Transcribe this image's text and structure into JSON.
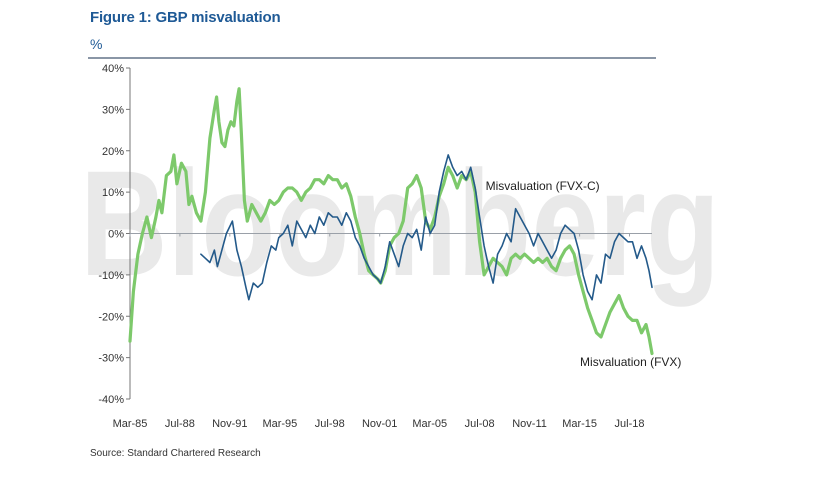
{
  "figure": {
    "title": "Figure 1: GBP misvaluation",
    "unit": "%",
    "source": "Source: Standard Chartered Research",
    "watermark": "Bloomberg"
  },
  "chart_data": {
    "type": "line",
    "title": "Figure 1: GBP misvaluation",
    "ylabel": "%",
    "ylim": [
      -40,
      40
    ],
    "yticks": [
      40,
      30,
      20,
      10,
      0,
      -10,
      -20,
      -30,
      -40
    ],
    "ytick_labels": [
      "40%",
      "30%",
      "20%",
      "10%",
      "0%",
      "-10%",
      "-20%",
      "-30%",
      "-40%"
    ],
    "xlim": [
      1985.17,
      2020.0
    ],
    "xticks": [
      {
        "label": "Mar-85",
        "x": 1985.17
      },
      {
        "label": "Jul-88",
        "x": 1988.5
      },
      {
        "label": "Nov-91",
        "x": 1991.83
      },
      {
        "label": "Mar-95",
        "x": 1995.17
      },
      {
        "label": "Jul-98",
        "x": 1998.5
      },
      {
        "label": "Nov-01",
        "x": 2001.83
      },
      {
        "label": "Mar-05",
        "x": 2005.17
      },
      {
        "label": "Jul-08",
        "x": 2008.5
      },
      {
        "label": "Nov-11",
        "x": 2011.83
      },
      {
        "label": "Mar-15",
        "x": 2015.17
      },
      {
        "label": "Jul-18",
        "x": 2018.5
      }
    ],
    "colors": {
      "fvx": "#7dc96b",
      "fvxc": "#245a8a",
      "axis": "#8a96a6",
      "zero_line": "#9aa0a8",
      "title": "#1f5a96"
    },
    "series": [
      {
        "name": "Misvaluation (FVX)",
        "key": "fvx",
        "points": [
          [
            1985.17,
            -26
          ],
          [
            1985.4,
            -14
          ],
          [
            1985.7,
            -5
          ],
          [
            1986.0,
            0
          ],
          [
            1986.3,
            4
          ],
          [
            1986.6,
            -1
          ],
          [
            1986.9,
            4
          ],
          [
            1987.1,
            8
          ],
          [
            1987.3,
            5
          ],
          [
            1987.6,
            14
          ],
          [
            1987.9,
            15
          ],
          [
            1988.1,
            19
          ],
          [
            1988.3,
            12
          ],
          [
            1988.6,
            17
          ],
          [
            1988.9,
            15
          ],
          [
            1989.1,
            7
          ],
          [
            1989.3,
            9
          ],
          [
            1989.6,
            5
          ],
          [
            1989.9,
            3
          ],
          [
            1990.2,
            10
          ],
          [
            1990.5,
            23
          ],
          [
            1990.8,
            30
          ],
          [
            1990.95,
            33
          ],
          [
            1991.1,
            27
          ],
          [
            1991.3,
            22
          ],
          [
            1991.5,
            21
          ],
          [
            1991.7,
            25
          ],
          [
            1991.9,
            27
          ],
          [
            1992.1,
            26
          ],
          [
            1992.3,
            32
          ],
          [
            1992.45,
            35
          ],
          [
            1992.6,
            24
          ],
          [
            1992.8,
            8
          ],
          [
            1993.0,
            3
          ],
          [
            1993.3,
            7
          ],
          [
            1993.6,
            5
          ],
          [
            1993.9,
            3
          ],
          [
            1994.2,
            5
          ],
          [
            1994.5,
            8
          ],
          [
            1994.8,
            7
          ],
          [
            1995.1,
            8
          ],
          [
            1995.4,
            10
          ],
          [
            1995.7,
            11
          ],
          [
            1996.0,
            11
          ],
          [
            1996.3,
            10
          ],
          [
            1996.6,
            8
          ],
          [
            1996.9,
            10
          ],
          [
            1997.2,
            11
          ],
          [
            1997.5,
            13
          ],
          [
            1997.8,
            13
          ],
          [
            1998.1,
            12
          ],
          [
            1998.4,
            14
          ],
          [
            1998.7,
            13
          ],
          [
            1999.0,
            13
          ],
          [
            1999.3,
            11
          ],
          [
            1999.6,
            12
          ],
          [
            1999.9,
            9
          ],
          [
            2000.2,
            4
          ],
          [
            2000.5,
            0
          ],
          [
            2000.8,
            -5
          ],
          [
            2001.1,
            -9
          ],
          [
            2001.4,
            -10
          ],
          [
            2001.7,
            -11
          ],
          [
            2001.9,
            -12
          ],
          [
            2002.2,
            -9
          ],
          [
            2002.5,
            -3
          ],
          [
            2002.8,
            -1
          ],
          [
            2003.1,
            0
          ],
          [
            2003.4,
            3
          ],
          [
            2003.7,
            11
          ],
          [
            2004.0,
            12
          ],
          [
            2004.3,
            14
          ],
          [
            2004.6,
            11
          ],
          [
            2004.9,
            3
          ],
          [
            2005.2,
            1
          ],
          [
            2005.5,
            4
          ],
          [
            2005.8,
            9
          ],
          [
            2006.1,
            12
          ],
          [
            2006.4,
            16
          ],
          [
            2006.7,
            14
          ],
          [
            2007.0,
            11
          ],
          [
            2007.3,
            14
          ],
          [
            2007.6,
            13
          ],
          [
            2007.9,
            15
          ],
          [
            2008.2,
            10
          ],
          [
            2008.5,
            -2
          ],
          [
            2008.8,
            -10
          ],
          [
            2009.1,
            -8
          ],
          [
            2009.4,
            -6
          ],
          [
            2009.7,
            -7
          ],
          [
            2010.0,
            -8
          ],
          [
            2010.3,
            -10
          ],
          [
            2010.6,
            -6
          ],
          [
            2010.9,
            -5
          ],
          [
            2011.2,
            -6
          ],
          [
            2011.5,
            -5
          ],
          [
            2011.8,
            -6
          ],
          [
            2012.1,
            -7
          ],
          [
            2012.4,
            -6
          ],
          [
            2012.7,
            -7
          ],
          [
            2013.0,
            -6
          ],
          [
            2013.3,
            -8
          ],
          [
            2013.6,
            -9
          ],
          [
            2013.9,
            -6
          ],
          [
            2014.2,
            -4
          ],
          [
            2014.5,
            -3
          ],
          [
            2014.8,
            -5
          ],
          [
            2015.1,
            -10
          ],
          [
            2015.4,
            -14
          ],
          [
            2015.7,
            -18
          ],
          [
            2016.0,
            -21
          ],
          [
            2016.3,
            -24
          ],
          [
            2016.6,
            -25
          ],
          [
            2016.9,
            -22
          ],
          [
            2017.2,
            -19
          ],
          [
            2017.5,
            -17
          ],
          [
            2017.8,
            -15
          ],
          [
            2018.1,
            -18
          ],
          [
            2018.4,
            -20
          ],
          [
            2018.7,
            -21
          ],
          [
            2019.0,
            -21
          ],
          [
            2019.3,
            -24
          ],
          [
            2019.6,
            -22
          ],
          [
            2019.8,
            -25
          ],
          [
            2020.0,
            -29
          ]
        ]
      },
      {
        "name": "Misvaluation (FVX-C)",
        "key": "fvxc",
        "points": [
          [
            1989.9,
            -5
          ],
          [
            1990.2,
            -6
          ],
          [
            1990.5,
            -7
          ],
          [
            1990.8,
            -4
          ],
          [
            1991.0,
            -8
          ],
          [
            1991.3,
            -4
          ],
          [
            1991.6,
            0
          ],
          [
            1992.0,
            3
          ],
          [
            1992.3,
            -4
          ],
          [
            1992.6,
            -8
          ],
          [
            1992.9,
            -13
          ],
          [
            1993.1,
            -16
          ],
          [
            1993.4,
            -12
          ],
          [
            1993.7,
            -13
          ],
          [
            1994.0,
            -12
          ],
          [
            1994.3,
            -7
          ],
          [
            1994.6,
            -3
          ],
          [
            1994.9,
            -4
          ],
          [
            1995.1,
            -1
          ],
          [
            1995.4,
            0
          ],
          [
            1995.7,
            2
          ],
          [
            1996.0,
            -3
          ],
          [
            1996.3,
            3
          ],
          [
            1996.6,
            1
          ],
          [
            1996.9,
            -1
          ],
          [
            1997.2,
            2
          ],
          [
            1997.5,
            0
          ],
          [
            1997.8,
            4
          ],
          [
            1998.1,
            2
          ],
          [
            1998.4,
            5
          ],
          [
            1998.7,
            4
          ],
          [
            1999.0,
            4
          ],
          [
            1999.3,
            2
          ],
          [
            1999.6,
            5
          ],
          [
            1999.9,
            3
          ],
          [
            2000.2,
            -1
          ],
          [
            2000.5,
            -3
          ],
          [
            2000.8,
            -6
          ],
          [
            2001.1,
            -8
          ],
          [
            2001.4,
            -10
          ],
          [
            2001.7,
            -11
          ],
          [
            2001.9,
            -12
          ],
          [
            2002.2,
            -8
          ],
          [
            2002.5,
            -2
          ],
          [
            2002.8,
            -5
          ],
          [
            2003.1,
            -8
          ],
          [
            2003.4,
            -3
          ],
          [
            2003.7,
            0
          ],
          [
            2004.0,
            -1
          ],
          [
            2004.3,
            1
          ],
          [
            2004.6,
            -4
          ],
          [
            2004.9,
            4
          ],
          [
            2005.2,
            0
          ],
          [
            2005.5,
            2
          ],
          [
            2005.8,
            10
          ],
          [
            2006.1,
            15
          ],
          [
            2006.4,
            19
          ],
          [
            2006.7,
            16
          ],
          [
            2007.0,
            14
          ],
          [
            2007.3,
            15
          ],
          [
            2007.6,
            13
          ],
          [
            2007.9,
            16
          ],
          [
            2008.2,
            11
          ],
          [
            2008.5,
            4
          ],
          [
            2008.8,
            -3
          ],
          [
            2009.1,
            -8
          ],
          [
            2009.4,
            -12
          ],
          [
            2009.7,
            -5
          ],
          [
            2010.0,
            -3
          ],
          [
            2010.3,
            0
          ],
          [
            2010.6,
            -2
          ],
          [
            2010.9,
            6
          ],
          [
            2011.2,
            4
          ],
          [
            2011.5,
            2
          ],
          [
            2011.8,
            0
          ],
          [
            2012.1,
            -3
          ],
          [
            2012.4,
            0
          ],
          [
            2012.7,
            -2
          ],
          [
            2013.0,
            -4
          ],
          [
            2013.3,
            -6
          ],
          [
            2013.6,
            -4
          ],
          [
            2013.9,
            0
          ],
          [
            2014.2,
            2
          ],
          [
            2014.5,
            1
          ],
          [
            2014.8,
            0
          ],
          [
            2015.1,
            -4
          ],
          [
            2015.4,
            -10
          ],
          [
            2015.7,
            -14
          ],
          [
            2016.0,
            -16
          ],
          [
            2016.3,
            -10
          ],
          [
            2016.6,
            -12
          ],
          [
            2016.9,
            -5
          ],
          [
            2017.2,
            -6
          ],
          [
            2017.5,
            -2
          ],
          [
            2017.8,
            0
          ],
          [
            2018.1,
            -1
          ],
          [
            2018.4,
            -2
          ],
          [
            2018.7,
            -2
          ],
          [
            2019.0,
            -6
          ],
          [
            2019.3,
            -3
          ],
          [
            2019.6,
            -6
          ],
          [
            2019.8,
            -9
          ],
          [
            2020.0,
            -13
          ]
        ]
      }
    ],
    "annotations": [
      {
        "text": "Misvaluation (FVX-C)",
        "series": "fvxc",
        "anchor": [
          2008.9,
          10.5
        ]
      },
      {
        "text": "Misvaluation (FVX)",
        "series": "fvx",
        "anchor": [
          2015.2,
          -32
        ]
      }
    ]
  }
}
